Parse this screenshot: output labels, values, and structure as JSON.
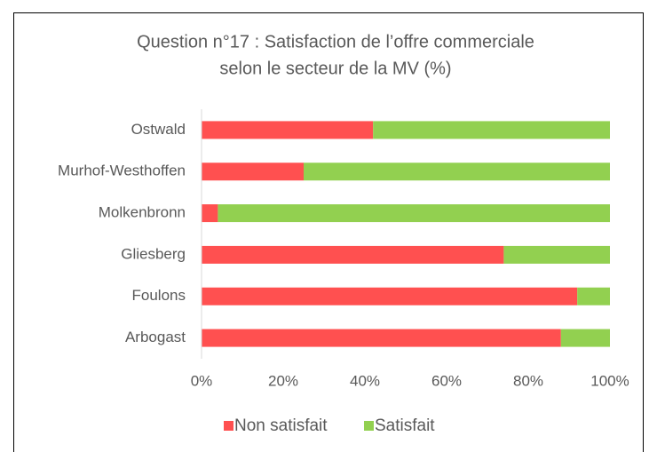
{
  "chart_data": {
    "type": "stacked-barh",
    "title": [
      "Question n°17 : Satisfaction de l’offre commerciale",
      "selon le secteur de la MV (%)"
    ],
    "categories": [
      "Ostwald",
      "Murhof-Westhoffen",
      "Molkenbronn",
      "Gliesberg",
      "Foulons",
      "Arbogast"
    ],
    "series": [
      {
        "name": "Non satisfait",
        "color": "#ff5050",
        "values": [
          42,
          25,
          4,
          74,
          92,
          88
        ]
      },
      {
        "name": "Satisfait",
        "color": "#92d050",
        "values": [
          58,
          75,
          96,
          26,
          8,
          12
        ]
      }
    ],
    "xlim": [
      0,
      100
    ],
    "xticks": [
      {
        "value": 0,
        "label": "0%"
      },
      {
        "value": 20,
        "label": "20%"
      },
      {
        "value": 40,
        "label": "40%"
      },
      {
        "value": 60,
        "label": "60%"
      },
      {
        "value": 80,
        "label": "80%"
      },
      {
        "value": 100,
        "label": "100%"
      }
    ],
    "legend": "bottom"
  }
}
